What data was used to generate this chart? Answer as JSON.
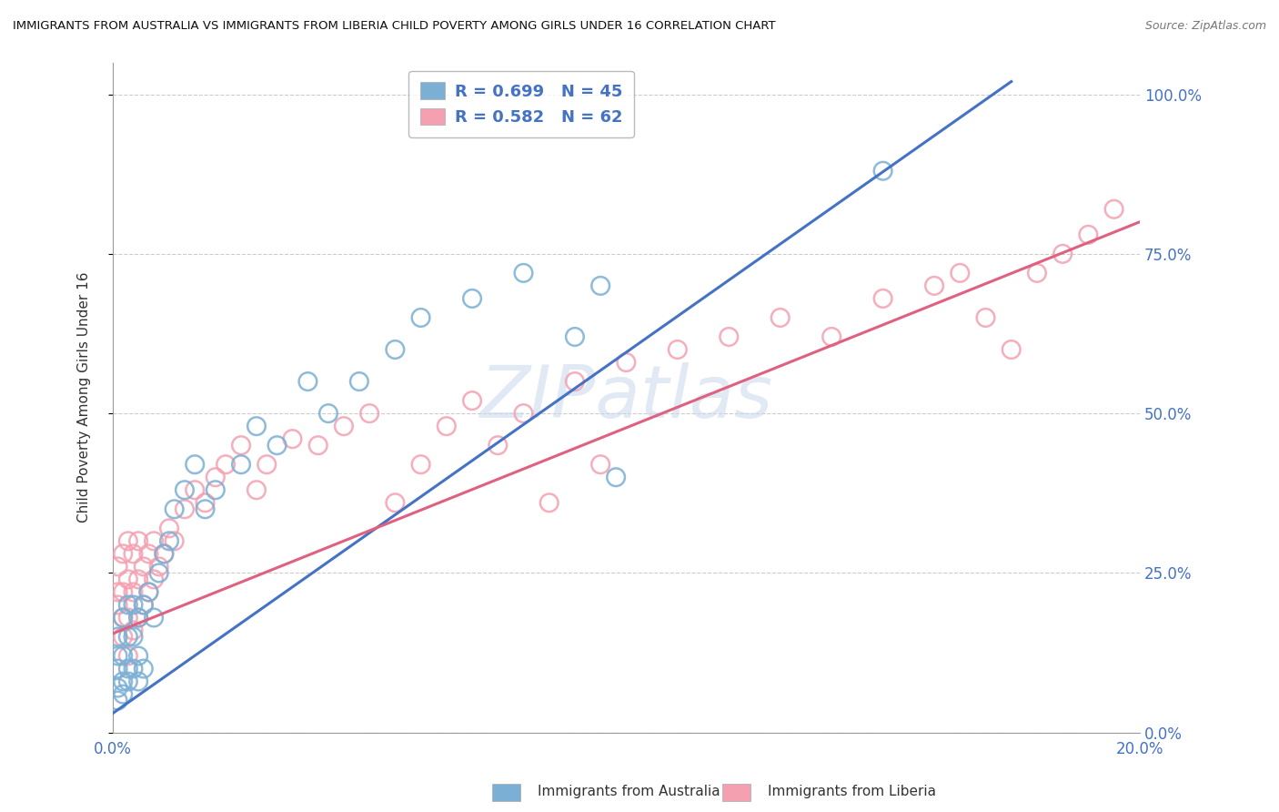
{
  "title": "IMMIGRANTS FROM AUSTRALIA VS IMMIGRANTS FROM LIBERIA CHILD POVERTY AMONG GIRLS UNDER 16 CORRELATION CHART",
  "source": "Source: ZipAtlas.com",
  "ylabel": "Child Poverty Among Girls Under 16",
  "xlim": [
    0.0,
    0.2
  ],
  "ylim": [
    0.0,
    1.05
  ],
  "x_ticks": [
    0.0,
    0.04,
    0.08,
    0.12,
    0.16,
    0.2
  ],
  "y_ticks": [
    0.0,
    0.25,
    0.5,
    0.75,
    1.0
  ],
  "australia_color": "#7BAFD4",
  "liberia_color": "#F4A0B0",
  "australia_line_color": "#4472C4",
  "liberia_line_color": "#E06080",
  "australia_R": 0.699,
  "australia_N": 45,
  "liberia_R": 0.582,
  "liberia_N": 62,
  "watermark": "ZIPatlas",
  "australia_line_x0": 0.0,
  "australia_line_y0": 0.03,
  "australia_line_x1": 0.175,
  "australia_line_y1": 1.02,
  "liberia_line_x0": 0.0,
  "liberia_line_y0": 0.155,
  "liberia_line_x1": 0.2,
  "liberia_line_y1": 0.8,
  "australia_scatter_x": [
    0.001,
    0.001,
    0.001,
    0.001,
    0.001,
    0.002,
    0.002,
    0.002,
    0.002,
    0.003,
    0.003,
    0.003,
    0.003,
    0.004,
    0.004,
    0.004,
    0.005,
    0.005,
    0.005,
    0.006,
    0.006,
    0.007,
    0.008,
    0.009,
    0.01,
    0.011,
    0.012,
    0.014,
    0.016,
    0.018,
    0.02,
    0.025,
    0.028,
    0.032,
    0.038,
    0.042,
    0.048,
    0.055,
    0.06,
    0.07,
    0.08,
    0.09,
    0.095,
    0.15,
    0.098
  ],
  "australia_scatter_y": [
    0.05,
    0.07,
    0.1,
    0.12,
    0.15,
    0.06,
    0.08,
    0.12,
    0.18,
    0.08,
    0.1,
    0.15,
    0.2,
    0.1,
    0.15,
    0.2,
    0.08,
    0.12,
    0.18,
    0.1,
    0.2,
    0.22,
    0.18,
    0.25,
    0.28,
    0.3,
    0.35,
    0.38,
    0.42,
    0.35,
    0.38,
    0.42,
    0.48,
    0.45,
    0.55,
    0.5,
    0.55,
    0.6,
    0.65,
    0.68,
    0.72,
    0.62,
    0.7,
    0.88,
    0.4
  ],
  "liberia_scatter_x": [
    0.001,
    0.001,
    0.001,
    0.002,
    0.002,
    0.002,
    0.002,
    0.003,
    0.003,
    0.003,
    0.003,
    0.004,
    0.004,
    0.004,
    0.005,
    0.005,
    0.005,
    0.006,
    0.006,
    0.007,
    0.007,
    0.008,
    0.008,
    0.009,
    0.01,
    0.011,
    0.012,
    0.014,
    0.016,
    0.018,
    0.02,
    0.022,
    0.025,
    0.028,
    0.03,
    0.035,
    0.04,
    0.045,
    0.05,
    0.055,
    0.06,
    0.065,
    0.07,
    0.075,
    0.08,
    0.085,
    0.09,
    0.095,
    0.1,
    0.11,
    0.12,
    0.13,
    0.14,
    0.15,
    0.16,
    0.165,
    0.17,
    0.175,
    0.18,
    0.185,
    0.19,
    0.195
  ],
  "liberia_scatter_y": [
    0.2,
    0.22,
    0.26,
    0.15,
    0.18,
    0.22,
    0.28,
    0.12,
    0.18,
    0.24,
    0.3,
    0.16,
    0.22,
    0.28,
    0.18,
    0.24,
    0.3,
    0.2,
    0.26,
    0.22,
    0.28,
    0.24,
    0.3,
    0.26,
    0.28,
    0.32,
    0.3,
    0.35,
    0.38,
    0.36,
    0.4,
    0.42,
    0.45,
    0.38,
    0.42,
    0.46,
    0.45,
    0.48,
    0.5,
    0.36,
    0.42,
    0.48,
    0.52,
    0.45,
    0.5,
    0.36,
    0.55,
    0.42,
    0.58,
    0.6,
    0.62,
    0.65,
    0.62,
    0.68,
    0.7,
    0.72,
    0.65,
    0.6,
    0.72,
    0.75,
    0.78,
    0.82
  ],
  "fig_width": 14.06,
  "fig_height": 8.92,
  "dpi": 100
}
